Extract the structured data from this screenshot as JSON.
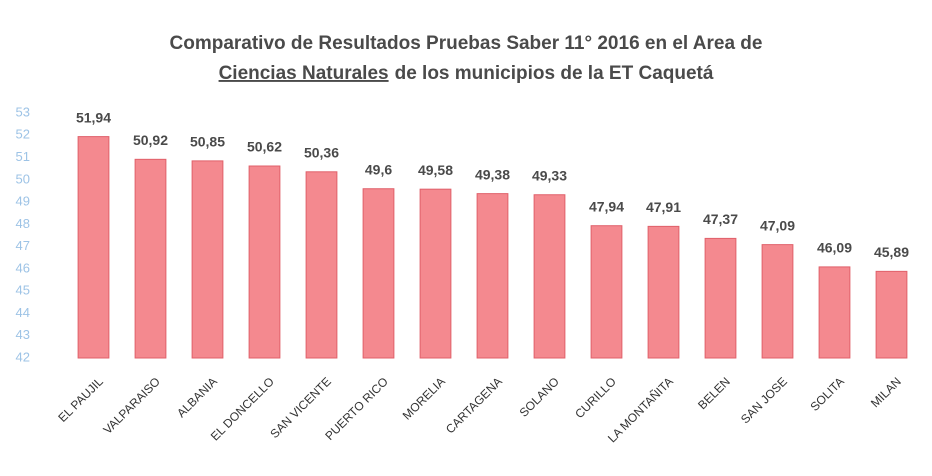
{
  "chart_data": {
    "type": "bar",
    "title": [
      "Comparativo de Resultados Pruebas Saber 11° 2016 en el Area de",
      "Ciencias Naturales",
      "de los municipios de la ET Caquetá"
    ],
    "categories": [
      "EL PAUJIL",
      "VALPARAISO",
      "ALBANIA",
      "EL DONCELLO",
      "SAN VICENTE",
      "PUERTO RICO",
      "MORELIA",
      "CARTAGENA",
      "SOLANO",
      "CURILLO",
      "LA MONTAÑITA",
      "BELEN",
      "SAN JOSE",
      "SOLITA",
      "MILAN"
    ],
    "values": [
      51.94,
      50.92,
      50.85,
      50.62,
      50.36,
      49.6,
      49.58,
      49.38,
      49.33,
      47.94,
      47.91,
      47.37,
      47.09,
      46.09,
      45.89
    ],
    "value_labels": [
      "51,94",
      "50,92",
      "50,85",
      "50,62",
      "50,36",
      "49,6",
      "49,58",
      "49,38",
      "49,33",
      "47,94",
      "47,91",
      "47,37",
      "47,09",
      "46,09",
      "45,89"
    ],
    "color": "#f4898f",
    "ylim": [
      42,
      53
    ],
    "yticks": [
      42,
      43,
      44,
      45,
      46,
      47,
      48,
      49,
      50,
      51,
      52,
      53
    ],
    "grid": false
  }
}
